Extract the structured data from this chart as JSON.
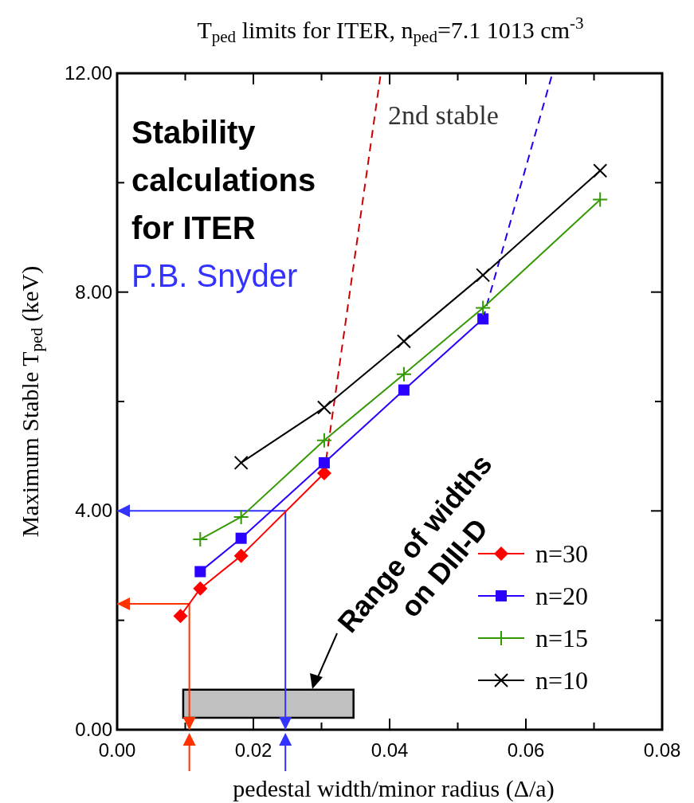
{
  "chart_data": {
    "type": "line",
    "title": "T$_{ped}$ limits for ITER, n$_{ped}$=7.1 1013 cm$^{-3}$",
    "xlabel": "pedestal width/minor radius (Δ/a)",
    "ylabel": "Maximum Stable T$_{ped}$ (keV)",
    "xlim": [
      0,
      0.08
    ],
    "ylim": [
      0,
      12
    ],
    "xticks": [
      {
        "value": 0,
        "label": "0.00"
      },
      {
        "value": 0.01,
        "label": null
      },
      {
        "value": 0.02,
        "label": "0.02"
      },
      {
        "value": 0.03,
        "label": null
      },
      {
        "value": 0.04,
        "label": "0.04"
      },
      {
        "value": 0.05,
        "label": null
      },
      {
        "value": 0.06,
        "label": "0.06"
      },
      {
        "value": 0.07,
        "label": null
      },
      {
        "value": 0.08,
        "label": "0.08"
      }
    ],
    "yticks": [
      {
        "value": 0,
        "label": "0.00"
      },
      {
        "value": 2,
        "label": null
      },
      {
        "value": 4,
        "label": "4.00"
      },
      {
        "value": 6,
        "label": null
      },
      {
        "value": 8,
        "label": "8.00"
      },
      {
        "value": 10,
        "label": null
      },
      {
        "value": 12,
        "label": "12.00"
      }
    ],
    "grid": false,
    "legend": "bottom right",
    "annotations": [
      "Stability calculations for ITER",
      "P.B. Snyder",
      "2nd stable",
      "Range of widths on DIII-D"
    ],
    "series": [
      {
        "type": "area",
        "color": "#c0c0c0",
        "x": [
          0.0097,
          0.0097,
          0.0347,
          0.0347,
          0.0097
        ],
        "values": [
          0.22,
          0.73,
          0.73,
          0.22,
          0.22
        ]
      },
      {
        "type": "line",
        "color": "#ff3300",
        "x": [
          0.0106,
          0.0106,
          0
        ],
        "values": [
          0,
          2.3,
          2.3
        ]
      },
      {
        "type": "line",
        "color": "#3333ff",
        "x": [
          0.0247,
          0.0247,
          0
        ],
        "values": [
          0,
          4,
          4
        ]
      },
      {
        "type": "line",
        "color": "#cc0000",
        "line_style": "dashed",
        "marker": "none",
        "x": [
          0.0304,
          0.0387
        ],
        "values": [
          4.69,
          12
        ]
      },
      {
        "type": "line",
        "color": "#2200ee",
        "line_style": "dashed",
        "marker": "none",
        "x": [
          0.0537,
          0.0639
        ],
        "values": [
          7.51,
          12
        ]
      },
      {
        "name": "n=30",
        "color": "#ff0000",
        "marker": "diamond",
        "x": [
          0.0093,
          0.0122,
          0.0182,
          0.0304
        ],
        "values": [
          2.08,
          2.58,
          3.18,
          4.69
        ]
      },
      {
        "name": "n=20",
        "color": "#2b00ff",
        "marker": "square",
        "x": [
          0.0122,
          0.0182,
          0.0304,
          0.0421,
          0.0537
        ],
        "values": [
          2.89,
          3.5,
          4.88,
          6.21,
          7.51
        ]
      },
      {
        "name": "n=15",
        "color": "#339900",
        "marker": "cross",
        "x": [
          0.0122,
          0.0182,
          0.0304,
          0.0421,
          0.0537,
          0.0709
        ],
        "values": [
          3.48,
          3.89,
          5.29,
          6.5,
          7.71,
          9.69
        ]
      },
      {
        "name": "n=10",
        "color": "#000000",
        "marker": "x",
        "x": [
          0.0182,
          0.0304,
          0.0421,
          0.0537,
          0.0709
        ],
        "values": [
          4.88,
          5.89,
          7.1,
          8.31,
          10.22
        ]
      }
    ]
  }
}
